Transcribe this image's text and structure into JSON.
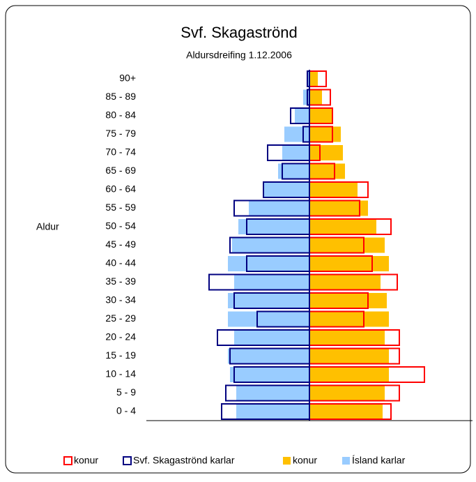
{
  "chart_data": {
    "type": "pyramid",
    "title": "Svf. Skagaströnd",
    "subtitle": "Aldursdreifing 1.12.2006",
    "y_label": "Aldur",
    "categories": [
      "0 - 4",
      "5 - 9",
      "10 - 14",
      "15 - 19",
      "20 - 24",
      "25 - 29",
      "30 - 34",
      "35 - 39",
      "40 - 44",
      "45 - 49",
      "50 - 54",
      "55 - 59",
      "60 - 64",
      "65 - 69",
      "70 - 74",
      "75 - 79",
      "80 - 84",
      "85 - 89",
      "90+"
    ],
    "xlim": [
      -7.8,
      7.8
    ],
    "series": [
      {
        "name": "konur",
        "color": "#ff0000",
        "style": "outline",
        "side": "right",
        "values": [
          3.9,
          4.3,
          5.5,
          4.3,
          4.3,
          2.6,
          2.8,
          4.2,
          3.0,
          2.6,
          3.9,
          2.4,
          2.8,
          1.2,
          0.5,
          1.1,
          1.1,
          1.0,
          0.8
        ]
      },
      {
        "name": "Svf. Skagaströnd karlar",
        "color": "#000080",
        "style": "outline",
        "side": "left",
        "values": [
          4.2,
          4.0,
          3.6,
          3.8,
          4.4,
          2.5,
          3.6,
          4.8,
          3.0,
          3.8,
          3.0,
          3.6,
          2.2,
          1.3,
          2.0,
          0.3,
          0.9,
          0.1,
          0.1
        ]
      },
      {
        "name": "konur",
        "color": "#ffc000",
        "style": "fill",
        "side": "right",
        "values": [
          3.5,
          3.6,
          3.8,
          3.8,
          3.6,
          3.8,
          3.7,
          3.4,
          3.8,
          3.6,
          3.2,
          2.8,
          2.3,
          1.7,
          1.6,
          1.5,
          1.1,
          0.6,
          0.4
        ]
      },
      {
        "name": "Ísland karlar",
        "color": "#99ccff",
        "style": "fill",
        "side": "left",
        "values": [
          3.5,
          3.5,
          3.8,
          3.9,
          3.6,
          3.9,
          3.9,
          3.6,
          3.9,
          3.7,
          3.4,
          2.9,
          2.2,
          1.5,
          1.3,
          1.2,
          0.7,
          0.3,
          0.1
        ]
      }
    ]
  }
}
